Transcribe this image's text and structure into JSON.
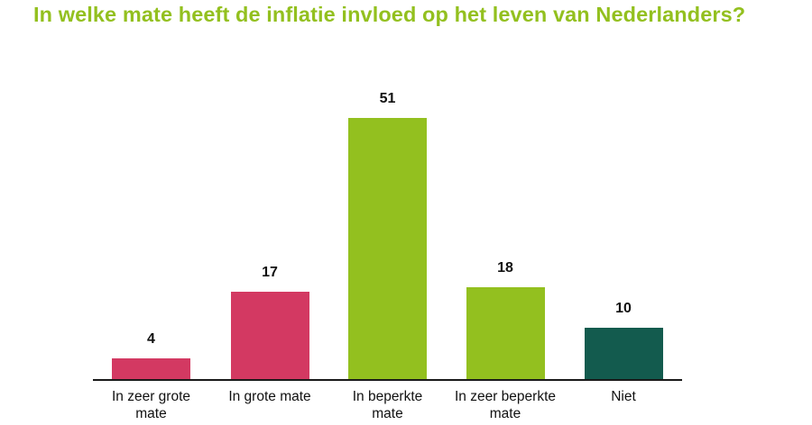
{
  "title": "In welke mate heeft de inflatie invloed op het leven van Nederlanders?",
  "colors": {
    "title": "#93c01f",
    "pink": "#d33962",
    "lime": "#93c01f",
    "dark_green": "#135b4e"
  },
  "bars": [
    {
      "label": "In zeer grote mate",
      "value": "4",
      "color": "#d33962"
    },
    {
      "label": "In grote mate",
      "value": "17",
      "color": "#d33962"
    },
    {
      "label": "In beperkte mate",
      "value": "51",
      "color": "#93c01f"
    },
    {
      "label": "In zeer beperkte mate",
      "value": "18",
      "color": "#93c01f"
    },
    {
      "label": "Niet",
      "value": "10",
      "color": "#135b4e"
    }
  ],
  "chart_data": {
    "type": "bar",
    "title": "In welke mate heeft de inflatie invloed op het leven van Nederlanders?",
    "categories": [
      "In zeer grote mate",
      "In grote mate",
      "In beperkte mate",
      "In zeer beperkte mate",
      "Niet"
    ],
    "values": [
      4,
      17,
      51,
      18,
      10
    ],
    "colors": [
      "#d33962",
      "#d33962",
      "#93c01f",
      "#93c01f",
      "#135b4e"
    ],
    "xlabel": "",
    "ylabel": "",
    "ylim": [
      0,
      51
    ],
    "grid": false,
    "legend": "none",
    "data_labels": true
  }
}
